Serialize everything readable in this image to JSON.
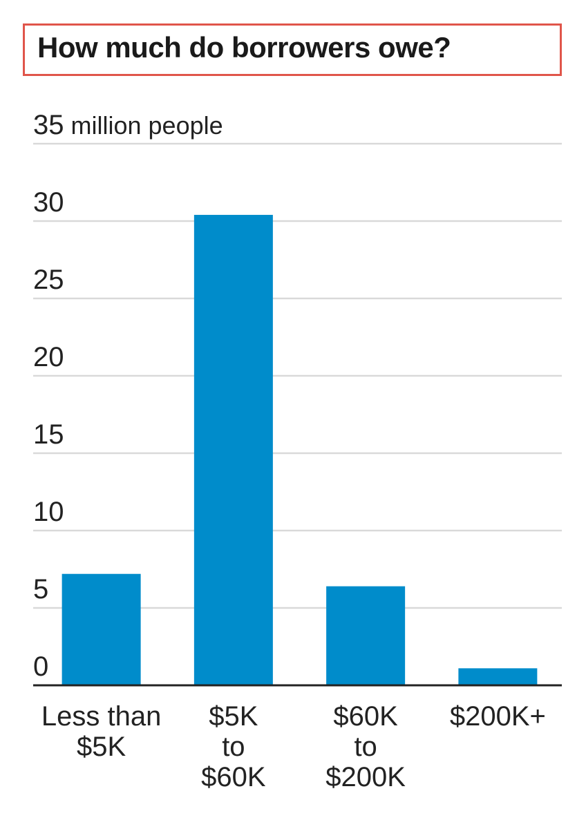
{
  "chart_data": {
    "type": "bar",
    "title": "How much do borrowers owe?",
    "ylabel": "",
    "unit_label": "million people",
    "categories": [
      [
        "Less than",
        "$5K"
      ],
      [
        "$5K",
        "to",
        "$60K"
      ],
      [
        "$60K",
        "to",
        "$200K"
      ],
      [
        "$200K+"
      ]
    ],
    "values": [
      7.2,
      30.4,
      6.4,
      1.1
    ],
    "ylim": [
      0,
      35
    ],
    "yticks": [
      "0",
      "5",
      "10",
      "15",
      "20",
      "25",
      "30",
      "35"
    ],
    "grid": true,
    "bar_color": "#008ccb",
    "title_border_color": "#e0554a"
  }
}
